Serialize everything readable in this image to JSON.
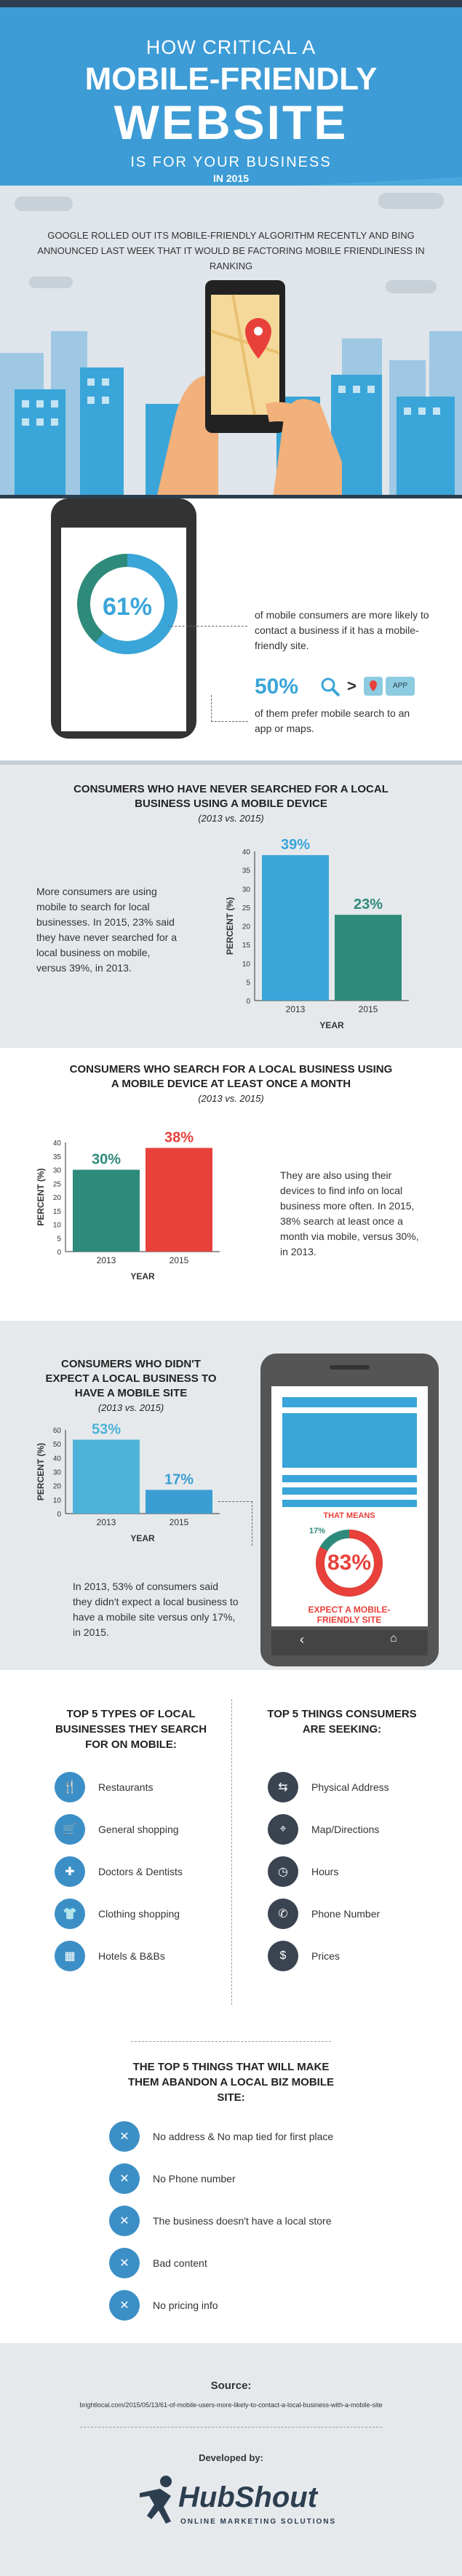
{
  "header": {
    "line1": "HOW CRITICAL A",
    "line2": "MOBILE-FRIENDLY",
    "line3": "WEBSITE",
    "line4": "IS FOR YOUR BUSINESS",
    "line5": "IN 2015"
  },
  "intro": "GOOGLE ROLLED OUT ITS MOBILE-FRIENDLY ALGORITHM RECENTLY AND BING ANNOUNCED LAST WEEK THAT IT WOULD BE FACTORING MOBILE FRIENDLINESS IN RANKING",
  "stat1": {
    "pct": "61%",
    "fraction": 0.61,
    "text": "of mobile consumers are more likely to contact a business if it has a mobile-friendly site.",
    "pct2": "50%",
    "arrow": ">",
    "app": "APP",
    "text2": "of them prefer mobile search to an app or maps."
  },
  "chart1": {
    "title": "CONSUMERS WHO HAVE NEVER SEARCHED FOR A LOCAL BUSINESS USING A MOBILE DEVICE",
    "sub": "(2013 vs. 2015)",
    "body": "More consumers are using mobile to search for local businesses. In 2015, 23% said they have never searched for a local business on mobile, versus 39%, in 2013."
  },
  "chart2": {
    "title": "CONSUMERS WHO SEARCH FOR A LOCAL BUSINESS USING A MOBILE DEVICE AT LEAST ONCE A MONTH",
    "sub": "(2013 vs. 2015)",
    "body": "They are also using their devices to find info on local business more often. In 2015, 38% search at least once a month via mobile, versus 30%, in 2013."
  },
  "chart3": {
    "title": "CONSUMERS WHO DIDN'T EXPECT A LOCAL BUSINESS TO HAVE A MOBILE SITE",
    "sub": "(2013 vs. 2015)",
    "body": "In 2013, 53% of consumers said they didn't expect a local business to have a mobile site versus only 17%, in 2015.",
    "means": "THAT MEANS",
    "small_pct": "17%",
    "big_pct": "83%",
    "big_fraction": 0.83,
    "expect": "EXPECT A MOBILE-FRIENDLY SITE"
  },
  "chart_data": [
    {
      "type": "bar",
      "categories": [
        "2013",
        "2015"
      ],
      "values": [
        39,
        23
      ],
      "value_labels": [
        "39%",
        "23%"
      ],
      "colors": [
        "#3aa5d8",
        "#2e8a7a"
      ],
      "xlabel": "YEAR",
      "ylabel": "PERCENT (%)",
      "ylim": [
        0,
        40
      ],
      "ticks": [
        "0",
        "5",
        "10",
        "15",
        "20",
        "25",
        "30",
        "35",
        "40"
      ],
      "title": "CONSUMERS WHO HAVE NEVER SEARCHED FOR A LOCAL BUSINESS USING A MOBILE DEVICE"
    },
    {
      "type": "bar",
      "categories": [
        "2013",
        "2015"
      ],
      "values": [
        30,
        38
      ],
      "value_labels": [
        "30%",
        "38%"
      ],
      "colors": [
        "#2e8a7a",
        "#e8403a"
      ],
      "xlabel": "YEAR",
      "ylabel": "PERCENT (%)",
      "ylim": [
        0,
        40
      ],
      "ticks": [
        "0",
        "5",
        "10",
        "15",
        "20",
        "25",
        "30",
        "35",
        "40"
      ],
      "title": "CONSUMERS WHO SEARCH FOR A LOCAL BUSINESS USING A MOBILE DEVICE AT LEAST ONCE A MONTH"
    },
    {
      "type": "bar",
      "categories": [
        "2013",
        "2015"
      ],
      "values": [
        53,
        17
      ],
      "value_labels": [
        "53%",
        "17%"
      ],
      "colors": [
        "#4db3d8",
        "#3a9ed4"
      ],
      "xlabel": "YEAR",
      "ylabel": "PERCENT (%)",
      "ylim": [
        0,
        60
      ],
      "ticks": [
        "0",
        "10",
        "20",
        "30",
        "40",
        "50",
        "60"
      ],
      "title": "CONSUMERS WHO DIDN'T EXPECT A LOCAL BUSINESS TO HAVE A MOBILE SITE"
    }
  ],
  "top5types": {
    "title": "TOP 5 TYPES OF LOCAL BUSINESSES THEY SEARCH FOR ON MOBILE:",
    "items": [
      "Restaurants",
      "General shopping",
      "Doctors & Dentists",
      "Clothing shopping",
      "Hotels & B&Bs"
    ],
    "icons": [
      "restaurant-icon",
      "shopping-cart-icon",
      "medical-cross-icon",
      "shirt-icon",
      "hotel-icon"
    ]
  },
  "top5seeking": {
    "title": "TOP 5 THINGS CONSUMERS ARE SEEKING:",
    "items": [
      "Physical Address",
      "Map/Directions",
      "Hours",
      "Phone Number",
      "Prices"
    ],
    "icons": [
      "address-icon",
      "map-pin-icon",
      "clock-icon",
      "phone-icon",
      "dollar-icon"
    ]
  },
  "abandon": {
    "title": "THE TOP 5 THINGS THAT WILL MAKE THEM ABANDON A LOCAL BIZ MOBILE SITE:",
    "items": [
      "No address & No map tied for first place",
      "No Phone number",
      "The business doesn't have a local store",
      "Bad content",
      "No pricing info"
    ]
  },
  "footer": {
    "source_label": "Source:",
    "source_url": "brightlocal.com/2015/05/13/61-of-mobile-users-more-likely-to-contact-a-local-business-with-a-mobile-site",
    "dev_label": "Developed by:",
    "brand": "HubShout",
    "tagline": "ONLINE MARKETING SOLUTIONS"
  },
  "colors": {
    "blue": "#3d9cd6",
    "red": "#e8403a",
    "teal": "#2e8a7a",
    "dark": "#2c3e50"
  }
}
